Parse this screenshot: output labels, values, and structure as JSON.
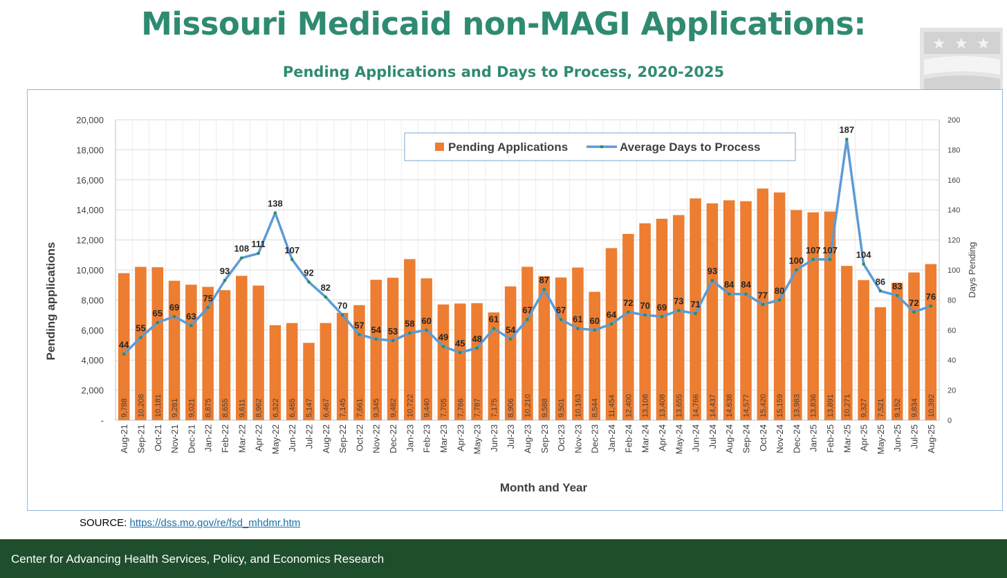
{
  "header": {
    "title": "Missouri Medicaid non-MAGI Applications:",
    "subtitle": "Pending Applications and Days to Process, 2020-2025"
  },
  "source": {
    "label": "SOURCE: ",
    "link": "https://dss.mo.gov/re/fsd_mhdmr.htm"
  },
  "footer": {
    "text": "Center for Advancing Health Services, Policy, and Economics Research"
  },
  "colors": {
    "bar": "#ed7d31",
    "line": "#5b9bd5",
    "marker": "#2e8b57",
    "title": "#2f8a72",
    "footer": "#1f4e2c"
  },
  "chart_data": {
    "type": "bar",
    "title": "Missouri Medicaid non-MAGI Applications: Pending Applications and Days to Process, 2020-2025",
    "xlabel": "Month and Year",
    "ylabel": "Pending applications",
    "y2label": "Days Pending",
    "ylim": [
      0,
      20000
    ],
    "y2lim": [
      0,
      200
    ],
    "yticks": [
      "-",
      "2,000",
      "4,000",
      "6,000",
      "8,000",
      "10,000",
      "12,000",
      "14,000",
      "16,000",
      "18,000",
      "20,000"
    ],
    "y2ticks": [
      "0",
      "20",
      "40",
      "60",
      "80",
      "100",
      "120",
      "140",
      "160",
      "180",
      "200"
    ],
    "grid": true,
    "legend_position": "top-center",
    "categories": [
      "Aug-21",
      "Sep-21",
      "Oct-21",
      "Nov-21",
      "Dec-21",
      "Jan-22",
      "Feb-22",
      "Mar-22",
      "Apr-22",
      "May-22",
      "Jun-22",
      "Jul-22",
      "Aug-22",
      "Sep-22",
      "Oct-22",
      "Nov-22",
      "Dec-22",
      "Jan-23",
      "Feb-23",
      "Mar-23",
      "Apr-23",
      "May-23",
      "Jun-23",
      "Jul-23",
      "Aug-23",
      "Sep-23",
      "Oct-23",
      "Nov-23",
      "Dec-23",
      "Jan-24",
      "Feb-24",
      "Mar-24",
      "Apr-24",
      "May-24",
      "Jun-24",
      "Jul-24",
      "Aug-24",
      "Sep-24",
      "Oct-24",
      "Nov-24",
      "Dec-24",
      "Jan-25",
      "Feb-25",
      "Mar-25",
      "Apr-25",
      "May-25",
      "Jun-25",
      "Jul-25",
      "Aug-25"
    ],
    "series": [
      {
        "name": "Pending Applications",
        "type": "bar",
        "axis": "left",
        "values": [
          9788,
          10208,
          10181,
          9281,
          9021,
          8875,
          8655,
          9611,
          8962,
          6322,
          6465,
          5147,
          6467,
          7145,
          7661,
          9345,
          9482,
          10722,
          9440,
          7705,
          7766,
          7787,
          7175,
          8906,
          10210,
          9588,
          9501,
          10163,
          8544,
          11454,
          12400,
          13108,
          13408,
          13655,
          14766,
          14437,
          14638,
          14577,
          15420,
          15159,
          13983,
          13836,
          13891,
          10271,
          9327,
          7521,
          9152,
          9834,
          10392
        ]
      },
      {
        "name": "Average Days to Process",
        "type": "line",
        "axis": "right",
        "values": [
          44,
          55,
          65,
          69,
          63,
          75,
          93,
          108,
          111,
          138,
          107,
          92,
          82,
          70,
          57,
          54,
          53,
          58,
          60,
          49,
          45,
          48,
          61,
          54,
          67,
          87,
          67,
          61,
          60,
          64,
          72,
          70,
          69,
          73,
          71,
          93,
          84,
          84,
          77,
          80,
          100,
          107,
          107,
          187,
          104,
          86,
          83,
          72,
          76
        ]
      }
    ]
  }
}
